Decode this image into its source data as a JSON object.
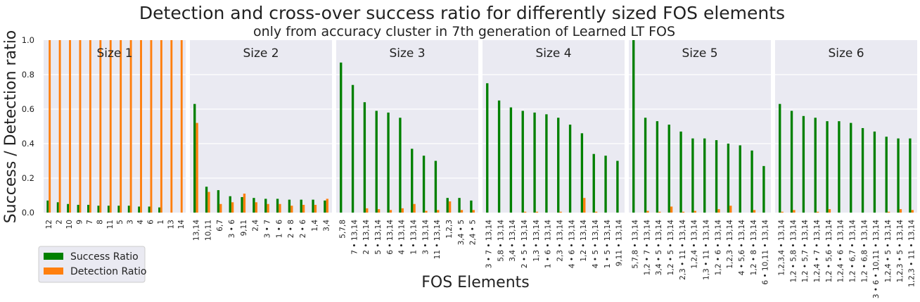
{
  "chart_data": {
    "type": "bar",
    "title": "Detection and cross-over success ratio for differently sized FOS elements",
    "subtitle": "only from accuracy cluster in 7th generation of Learned LT FOS",
    "xlabel": "FOS Elements",
    "ylabel": "Success / Detection ratio",
    "ylim": [
      0,
      1.0
    ],
    "yticks": [
      "0.0",
      "0.2",
      "0.4",
      "0.6",
      "0.8",
      "1.0"
    ],
    "grid": true,
    "legend_position": "bottom-left",
    "series_names": [
      "Success Ratio",
      "Detection Ratio"
    ],
    "colors": {
      "success": "#008000",
      "detection": "#ff7f0e",
      "panel_bg": "#eaeaf2",
      "grid": "#ffffff"
    },
    "panels": [
      {
        "title": "Size 1",
        "categories": [
          "12",
          "2",
          "10",
          "9",
          "7",
          "8",
          "11",
          "5",
          "3",
          "4",
          "6",
          "1",
          "13",
          "14"
        ],
        "success": [
          0.07,
          0.06,
          0.05,
          0.045,
          0.045,
          0.04,
          0.04,
          0.04,
          0.04,
          0.035,
          0.035,
          0.03,
          0.0,
          0.0
        ],
        "detection": [
          1.0,
          1.0,
          1.0,
          1.0,
          1.0,
          1.0,
          1.0,
          1.0,
          1.0,
          1.0,
          1.0,
          1.0,
          1.0,
          1.0
        ]
      },
      {
        "title": "Size 2",
        "categories": [
          "13,14",
          "10,11",
          "6,7",
          "3 • 6",
          "9,11",
          "2,4",
          "3 • 7",
          "1 • 6",
          "2 • 8",
          "2 • 6",
          "1,4",
          "3,4"
        ],
        "success": [
          0.63,
          0.15,
          0.13,
          0.095,
          0.09,
          0.085,
          0.08,
          0.08,
          0.075,
          0.075,
          0.075,
          0.07
        ],
        "detection": [
          0.52,
          0.12,
          0.05,
          0.06,
          0.11,
          0.06,
          0.05,
          0.05,
          0.04,
          0.045,
          0.045,
          0.08
        ]
      },
      {
        "title": "Size 3",
        "categories": [
          "5,7,8",
          "7 • 13,14",
          "2 • 13,14",
          "5 • 13,14",
          "6 • 13,14",
          "4 • 13,14",
          "1 • 13,14",
          "3 • 13,14",
          "11 • 13,14",
          "1,2,3",
          "3,4 • 5",
          "2,4 • 5"
        ],
        "success": [
          0.87,
          0.74,
          0.64,
          0.59,
          0.58,
          0.55,
          0.37,
          0.33,
          0.3,
          0.085,
          0.085,
          0.07
        ],
        "detection": [
          0.0,
          0.0,
          0.025,
          0.02,
          0.015,
          0.025,
          0.05,
          0.01,
          0.015,
          0.065,
          0.015,
          0.015
        ]
      },
      {
        "title": "Size 4",
        "categories": [
          "3 • 7 • 13,14",
          "5,8 • 13,14",
          "3,4 • 13,14",
          "2 • 5 • 13,14",
          "1,3 • 13,14",
          "1 • 6 • 13,14",
          "2,3 • 13,14",
          "4 • 6 • 13,14",
          "1,2 • 13,14",
          "4 • 5 • 13,14",
          "1 • 5 • 13,14",
          "9,11 • 13,14"
        ],
        "success": [
          0.75,
          0.65,
          0.61,
          0.59,
          0.58,
          0.57,
          0.55,
          0.51,
          0.46,
          0.34,
          0.33,
          0.3
        ],
        "detection": [
          0.0,
          0.0,
          0.0,
          0.005,
          0.005,
          0.0,
          0.005,
          0.0,
          0.085,
          0.005,
          0.0,
          0.0
        ]
      },
      {
        "title": "Size 5",
        "categories": [
          "5,7,8 • 13,14",
          "1,2 • 7 • 13,14",
          "3,4 • 5 • 13,14",
          "1,2 • 5 • 13,14",
          "2,3 • 11 • 13,14",
          "1,2,4 • 13,14",
          "1,3 • 11 • 13,14",
          "1,2 • 6 • 13,14",
          "1,2,3 • 13,14",
          "4 • 5,6 • 13,14",
          "1,2 • 8 • 13,14",
          "6 • 10,11 • 13,14"
        ],
        "success": [
          1.0,
          0.55,
          0.53,
          0.51,
          0.47,
          0.43,
          0.43,
          0.42,
          0.4,
          0.39,
          0.36,
          0.27
        ],
        "detection": [
          0.0,
          0.01,
          0.005,
          0.035,
          0.005,
          0.01,
          0.0,
          0.02,
          0.04,
          0.0,
          0.015,
          0.0
        ]
      },
      {
        "title": "Size 6",
        "categories": [
          "1,2,3,4 • 13,14",
          "1,2 • 5,8 • 13,14",
          "1,2 • 5,7 • 13,14",
          "1,2,4 • 7 • 13,14",
          "1,2 • 5,6 • 13,14",
          "1,2,4 • 6 • 13,14",
          "1,2 • 6,7 • 13,14",
          "1,2 • 6,8 • 13,14",
          "3 • 6 • 10,11 • 13,14",
          "1,2,4 • 5 • 13,14",
          "1,2,3 • 5 • 13,14",
          "1,2,3 • 11 • 13,14"
        ],
        "success": [
          0.63,
          0.59,
          0.56,
          0.55,
          0.53,
          0.53,
          0.52,
          0.49,
          0.47,
          0.44,
          0.43,
          0.43
        ],
        "detection": [
          0.005,
          0.015,
          0.0,
          0.005,
          0.02,
          0.0,
          0.0,
          0.0,
          0.0,
          0.005,
          0.02,
          0.015
        ]
      }
    ]
  }
}
